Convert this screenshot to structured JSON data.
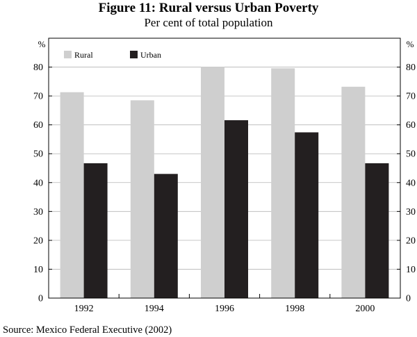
{
  "chart_data": {
    "type": "bar",
    "title": "Figure 11: Rural versus Urban Poverty",
    "subtitle": "Per cent of total population",
    "ylabel_left": "%",
    "ylabel_right": "%",
    "xlabel": "",
    "categories": [
      "1992",
      "1994",
      "1996",
      "1998",
      "2000"
    ],
    "series": [
      {
        "name": "Rural",
        "color": "#cfcfcf",
        "values": [
          71.3,
          68.5,
          80.0,
          79.6,
          73.2
        ]
      },
      {
        "name": "Urban",
        "color": "#231f20",
        "values": [
          46.7,
          43.0,
          61.6,
          57.4,
          46.7
        ]
      }
    ],
    "ylim": [
      0,
      90
    ],
    "yticks": [
      0,
      10,
      20,
      30,
      40,
      50,
      60,
      70,
      80
    ],
    "grid": true,
    "legend": "top-left",
    "source": "Source: Mexico Federal Executive (2002)"
  }
}
